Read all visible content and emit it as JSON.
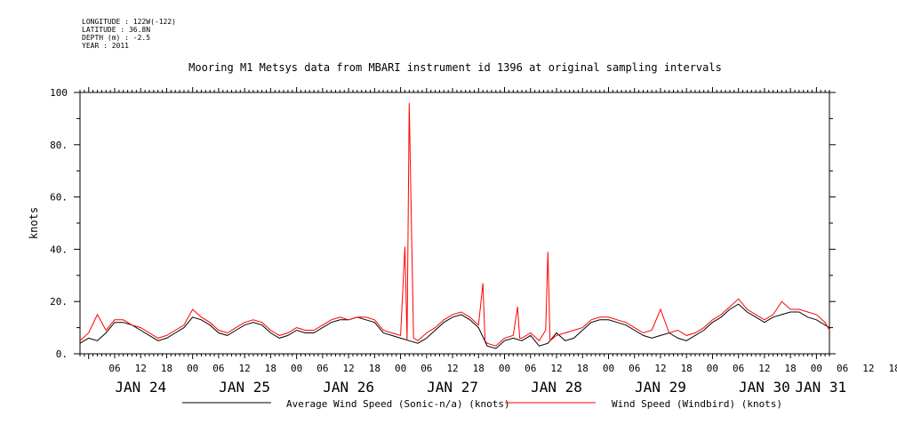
{
  "meta": {
    "longitude": "LONGITUDE : 122W(-122)",
    "latitude": "LATITUDE : 36.8N",
    "depth": "DEPTH (m) : -2.5",
    "year": "YEAR : 2011"
  },
  "chart_data": {
    "type": "line",
    "title": "Mooring M1 Metsys data from MBARI instrument id 1396 at original sampling intervals",
    "ylabel": "knots",
    "ylim": [
      0,
      100
    ],
    "y_ticks": [
      "0.",
      "20.",
      "40.",
      "60.",
      "80.",
      "100"
    ],
    "x_hour_ticks": [
      "06",
      "12",
      "18",
      "00",
      "06",
      "12",
      "18",
      "00",
      "06",
      "12",
      "18",
      "00",
      "06",
      "12",
      "18",
      "00",
      "06",
      "12",
      "18",
      "00",
      "06",
      "12",
      "18",
      "00",
      "06",
      "12",
      "18",
      "00",
      "06",
      "12",
      "18",
      "00"
    ],
    "x_day_labels": [
      "JAN 24",
      "JAN 25",
      "JAN 26",
      "JAN 27",
      "JAN 28",
      "JAN 29",
      "JAN 30",
      "JAN 31"
    ],
    "xlim": [
      "2011-01-23T22:00",
      "2011-01-31T03:00"
    ],
    "grid": false,
    "legend_position": "bottom",
    "series": [
      {
        "name": "Average Wind Speed (Sonic-n/a) (knots)",
        "color": "#000000",
        "x": [
          "2011-01-23T22:00",
          "2011-01-24T00:00",
          "2011-01-24T02:00",
          "2011-01-24T04:00",
          "2011-01-24T06:00",
          "2011-01-24T08:00",
          "2011-01-24T10:00",
          "2011-01-24T12:00",
          "2011-01-24T14:00",
          "2011-01-24T16:00",
          "2011-01-24T18:00",
          "2011-01-24T20:00",
          "2011-01-24T22:00",
          "2011-01-25T00:00",
          "2011-01-25T02:00",
          "2011-01-25T04:00",
          "2011-01-25T06:00",
          "2011-01-25T08:00",
          "2011-01-25T10:00",
          "2011-01-25T12:00",
          "2011-01-25T14:00",
          "2011-01-25T16:00",
          "2011-01-25T18:00",
          "2011-01-25T20:00",
          "2011-01-25T22:00",
          "2011-01-26T00:00",
          "2011-01-26T02:00",
          "2011-01-26T04:00",
          "2011-01-26T06:00",
          "2011-01-26T08:00",
          "2011-01-26T10:00",
          "2011-01-26T12:00",
          "2011-01-26T14:00",
          "2011-01-26T16:00",
          "2011-01-26T18:00",
          "2011-01-26T20:00",
          "2011-01-26T22:00",
          "2011-01-27T00:00",
          "2011-01-27T02:00",
          "2011-01-27T04:00",
          "2011-01-27T06:00",
          "2011-01-27T08:00",
          "2011-01-27T10:00",
          "2011-01-27T12:00",
          "2011-01-27T14:00",
          "2011-01-27T16:00",
          "2011-01-27T18:00",
          "2011-01-27T20:00",
          "2011-01-27T22:00",
          "2011-01-28T00:00",
          "2011-01-28T02:00",
          "2011-01-28T04:00",
          "2011-01-28T06:00",
          "2011-01-28T08:00",
          "2011-01-28T10:00",
          "2011-01-28T12:00",
          "2011-01-28T14:00",
          "2011-01-28T16:00",
          "2011-01-28T18:00",
          "2011-01-28T20:00",
          "2011-01-28T22:00",
          "2011-01-29T00:00",
          "2011-01-29T02:00",
          "2011-01-29T04:00",
          "2011-01-29T06:00",
          "2011-01-29T08:00",
          "2011-01-29T10:00",
          "2011-01-29T12:00",
          "2011-01-29T14:00",
          "2011-01-29T16:00",
          "2011-01-29T18:00",
          "2011-01-29T20:00",
          "2011-01-29T22:00",
          "2011-01-30T00:00",
          "2011-01-30T02:00",
          "2011-01-30T04:00",
          "2011-01-30T06:00",
          "2011-01-30T08:00",
          "2011-01-30T10:00",
          "2011-01-30T12:00",
          "2011-01-30T14:00",
          "2011-01-30T16:00",
          "2011-01-30T18:00",
          "2011-01-30T20:00",
          "2011-01-30T22:00",
          "2011-01-31T00:00",
          "2011-01-31T02:00",
          "2011-01-31T03:00"
        ],
        "y": [
          4,
          6,
          5,
          8,
          12,
          12,
          11,
          9,
          7,
          5,
          6,
          8,
          10,
          14,
          13,
          11,
          8,
          7,
          9,
          11,
          12,
          11,
          8,
          6,
          7,
          9,
          8,
          8,
          10,
          12,
          13,
          13,
          14,
          13,
          12,
          8,
          7,
          6,
          5,
          4,
          6,
          9,
          12,
          14,
          15,
          13,
          10,
          3,
          2,
          5,
          6,
          5,
          7,
          3,
          4,
          8,
          5,
          6,
          9,
          12,
          13,
          13,
          12,
          11,
          9,
          7,
          6,
          7,
          8,
          6,
          5,
          7,
          9,
          12,
          14,
          17,
          19,
          16,
          14,
          12,
          14,
          15,
          16,
          16,
          14,
          13,
          11,
          10
        ]
      },
      {
        "name": "Wind Speed (Windbird) (knots)",
        "color": "#ff0000",
        "x": [
          "2011-01-23T22:00",
          "2011-01-24T00:00",
          "2011-01-24T02:00",
          "2011-01-24T04:00",
          "2011-01-24T06:00",
          "2011-01-24T08:00",
          "2011-01-24T10:00",
          "2011-01-24T12:00",
          "2011-01-24T14:00",
          "2011-01-24T16:00",
          "2011-01-24T18:00",
          "2011-01-24T20:00",
          "2011-01-24T22:00",
          "2011-01-25T00:00",
          "2011-01-25T02:00",
          "2011-01-25T04:00",
          "2011-01-25T06:00",
          "2011-01-25T08:00",
          "2011-01-25T10:00",
          "2011-01-25T12:00",
          "2011-01-25T14:00",
          "2011-01-25T16:00",
          "2011-01-25T18:00",
          "2011-01-25T20:00",
          "2011-01-25T22:00",
          "2011-01-26T00:00",
          "2011-01-26T02:00",
          "2011-01-26T04:00",
          "2011-01-26T06:00",
          "2011-01-26T08:00",
          "2011-01-26T10:00",
          "2011-01-26T12:00",
          "2011-01-26T14:00",
          "2011-01-26T16:00",
          "2011-01-26T18:00",
          "2011-01-26T20:00",
          "2011-01-26T22:00",
          "2011-01-27T00:00",
          "2011-01-27T01:00",
          "2011-01-27T01:30",
          "2011-01-27T02:00",
          "2011-01-27T02:30",
          "2011-01-27T03:00",
          "2011-01-27T04:00",
          "2011-01-27T06:00",
          "2011-01-27T08:00",
          "2011-01-27T10:00",
          "2011-01-27T12:00",
          "2011-01-27T14:00",
          "2011-01-27T16:00",
          "2011-01-27T18:00",
          "2011-01-27T19:00",
          "2011-01-27T19:30",
          "2011-01-27T20:00",
          "2011-01-27T22:00",
          "2011-01-28T00:00",
          "2011-01-28T02:00",
          "2011-01-28T03:00",
          "2011-01-28T03:30",
          "2011-01-28T04:00",
          "2011-01-28T06:00",
          "2011-01-28T08:00",
          "2011-01-28T09:30",
          "2011-01-28T10:00",
          "2011-01-28T10:30",
          "2011-01-28T12:00",
          "2011-01-28T14:00",
          "2011-01-28T16:00",
          "2011-01-28T18:00",
          "2011-01-28T20:00",
          "2011-01-28T22:00",
          "2011-01-29T00:00",
          "2011-01-29T02:00",
          "2011-01-29T04:00",
          "2011-01-29T06:00",
          "2011-01-29T08:00",
          "2011-01-29T10:00",
          "2011-01-29T12:00",
          "2011-01-29T14:00",
          "2011-01-29T16:00",
          "2011-01-29T18:00",
          "2011-01-29T20:00",
          "2011-01-29T22:00",
          "2011-01-30T00:00",
          "2011-01-30T02:00",
          "2011-01-30T04:00",
          "2011-01-30T06:00",
          "2011-01-30T08:00",
          "2011-01-30T10:00",
          "2011-01-30T12:00",
          "2011-01-30T14:00",
          "2011-01-30T16:00",
          "2011-01-30T18:00",
          "2011-01-30T20:00",
          "2011-01-30T22:00",
          "2011-01-31T00:00",
          "2011-01-31T02:00",
          "2011-01-31T03:00"
        ],
        "y": [
          5,
          8,
          15,
          9,
          13,
          13,
          11,
          10,
          8,
          6,
          7,
          9,
          11,
          17,
          14,
          12,
          9,
          8,
          10,
          12,
          13,
          12,
          9,
          7,
          8,
          10,
          9,
          9,
          11,
          13,
          14,
          13,
          14,
          14,
          13,
          9,
          8,
          7,
          41,
          5,
          96,
          49,
          6,
          5,
          8,
          10,
          13,
          15,
          16,
          14,
          11,
          27,
          5,
          4,
          3,
          6,
          7,
          18,
          6,
          6,
          8,
          5,
          9,
          39,
          5,
          7,
          8,
          9,
          10,
          13,
          14,
          14,
          13,
          12,
          10,
          8,
          9,
          17,
          8,
          9,
          7,
          8,
          10,
          13,
          15,
          18,
          21,
          17,
          15,
          13,
          15,
          20,
          17,
          17,
          16,
          15,
          12,
          9
        ]
      }
    ]
  }
}
